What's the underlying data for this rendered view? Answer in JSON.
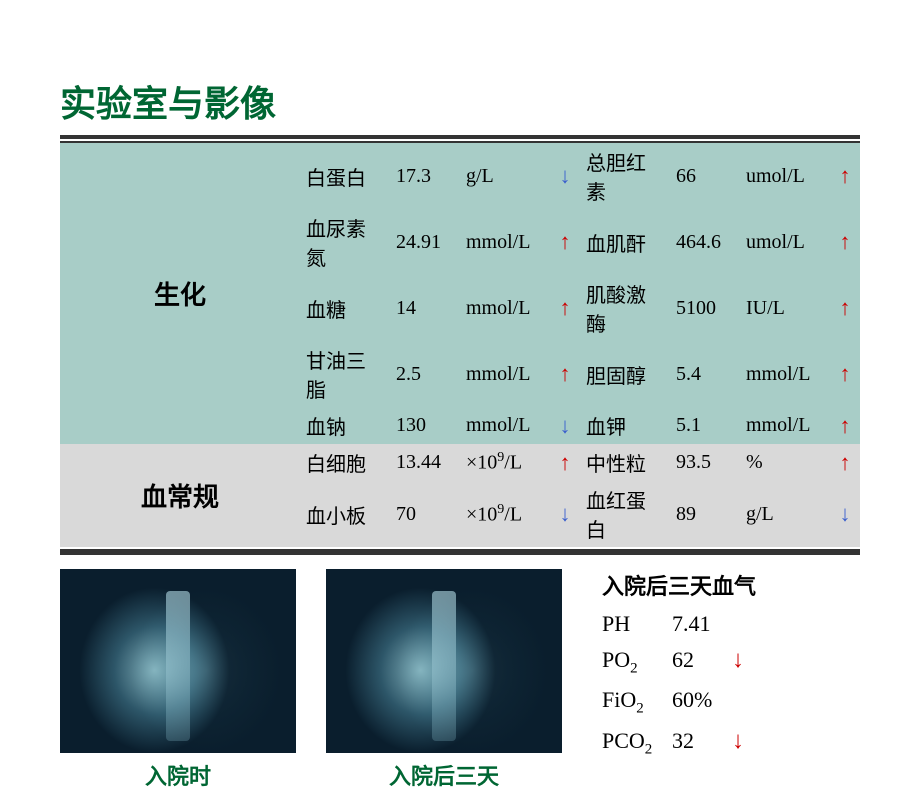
{
  "title": "实验室与影像",
  "colors": {
    "title": "#006633",
    "arrow_red": "#cc0000",
    "arrow_blue": "#3a5fcd",
    "bg_teal": "#a8cdc7",
    "bg_gray": "#d9d9d9"
  },
  "sections": [
    {
      "category": "生化",
      "bg": "#a8cdc7",
      "rows": [
        {
          "l_param": "白蛋白",
          "l_val": "17.3",
          "l_unit": "g/L",
          "l_arrow": "down",
          "r_param": "总胆红素",
          "r_val": "66",
          "r_unit": "umol/L",
          "r_arrow": "up"
        },
        {
          "l_param": "血尿素氮",
          "l_val": "24.91",
          "l_unit": "mmol/L",
          "l_arrow": "up",
          "r_param": "血肌酐",
          "r_val": "464.6",
          "r_unit": "umol/L",
          "r_arrow": "up"
        },
        {
          "l_param": "血糖",
          "l_val": "14",
          "l_unit": "mmol/L",
          "l_arrow": "up",
          "r_param": "肌酸激酶",
          "r_val": "5100",
          "r_unit": "IU/L",
          "r_arrow": "up"
        },
        {
          "l_param": "甘油三脂",
          "l_val": "2.5",
          "l_unit": "mmol/L",
          "l_arrow": "up",
          "r_param": "胆固醇",
          "r_val": "5.4",
          "r_unit": "mmol/L",
          "r_arrow": "up"
        },
        {
          "l_param": "血钠",
          "l_val": "130",
          "l_unit": "mmol/L",
          "l_arrow": "down",
          "r_param": "血钾",
          "r_val": "5.1",
          "r_unit": "mmol/L",
          "r_arrow": "up"
        }
      ]
    },
    {
      "category": "血常规",
      "bg": "#d9d9d9",
      "rows": [
        {
          "l_param": "白细胞",
          "l_val": "13.44",
          "l_unit": "×10⁹/L",
          "l_arrow": "up",
          "r_param": "中性粒",
          "r_val": "93.5",
          "r_unit": "%",
          "r_arrow": "up"
        },
        {
          "l_param": "血小板",
          "l_val": "70",
          "l_unit": "×10⁹/L",
          "l_arrow": "down",
          "r_param": "血红蛋白",
          "r_val": "89",
          "r_unit": "g/L",
          "r_arrow": "down"
        }
      ]
    }
  ],
  "xrays": [
    {
      "caption": "入院时"
    },
    {
      "caption": "入院后三天"
    }
  ],
  "blood_gas": {
    "title": "入院后三天血气",
    "rows": [
      {
        "label": "PH",
        "sub": "",
        "val": "7.41",
        "arrow": ""
      },
      {
        "label": "PO",
        "sub": "2",
        "val": "62",
        "arrow": "down"
      },
      {
        "label": "FiO",
        "sub": "2",
        "val": "60%",
        "arrow": ""
      },
      {
        "label": "PCO",
        "sub": "2",
        "val": "32",
        "arrow": "down"
      }
    ]
  }
}
